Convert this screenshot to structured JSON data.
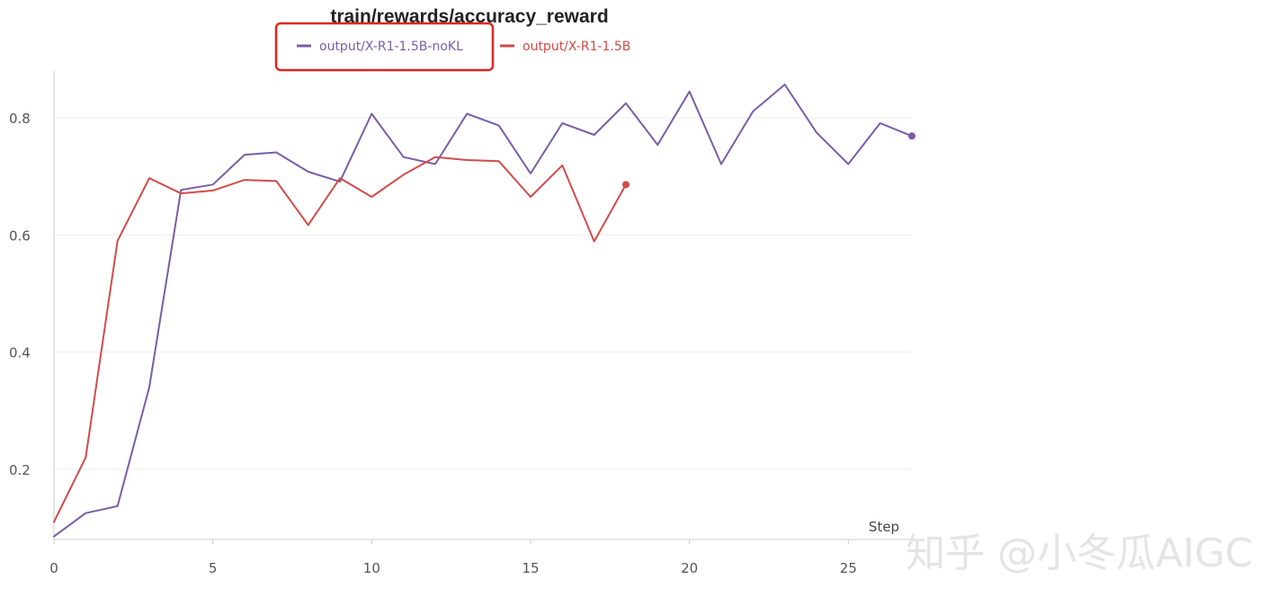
{
  "chart_data": {
    "type": "line",
    "title": "train/rewards/accuracy_reward",
    "xlabel": "Step",
    "ylabel": "",
    "xlim": [
      0,
      27
    ],
    "ylim": [
      0.08,
      0.88
    ],
    "xticks": [
      0,
      5,
      10,
      15,
      20,
      25
    ],
    "yticks": [
      0.2,
      0.4,
      0.6,
      0.8
    ],
    "grid": true,
    "legend_position": "top-center",
    "series": [
      {
        "name": "output/X-R1-1.5B-noKL",
        "color": "#7b5ca8",
        "x": [
          0,
          1,
          2,
          3,
          4,
          5,
          6,
          7,
          8,
          9,
          10,
          11,
          12,
          13,
          14,
          15,
          16,
          17,
          18,
          19,
          20,
          21,
          22,
          23,
          24,
          25,
          26,
          27
        ],
        "y": [
          0.085,
          0.125,
          0.137,
          0.34,
          0.677,
          0.686,
          0.737,
          0.741,
          0.708,
          0.691,
          0.807,
          0.733,
          0.721,
          0.807,
          0.787,
          0.705,
          0.791,
          0.771,
          0.825,
          0.754,
          0.845,
          0.721,
          0.811,
          0.857,
          0.775,
          0.721,
          0.791,
          0.769
        ]
      },
      {
        "name": "output/X-R1-1.5B",
        "color": "#d24b4b",
        "x": [
          0,
          1,
          2,
          3,
          4,
          5,
          6,
          7,
          8,
          9,
          10,
          11,
          12,
          13,
          14,
          15,
          16,
          17,
          18
        ],
        "y": [
          0.11,
          0.22,
          0.59,
          0.697,
          0.671,
          0.676,
          0.694,
          0.692,
          0.617,
          0.697,
          0.665,
          0.703,
          0.733,
          0.728,
          0.726,
          0.665,
          0.719,
          0.589,
          0.686
        ]
      }
    ],
    "annotation": {
      "type": "highlight-box",
      "target": "output/X-R1-1.5B-noKL",
      "color": "#e0271f"
    }
  },
  "watermark": {
    "text": "知乎 @小冬瓜AIGC"
  }
}
